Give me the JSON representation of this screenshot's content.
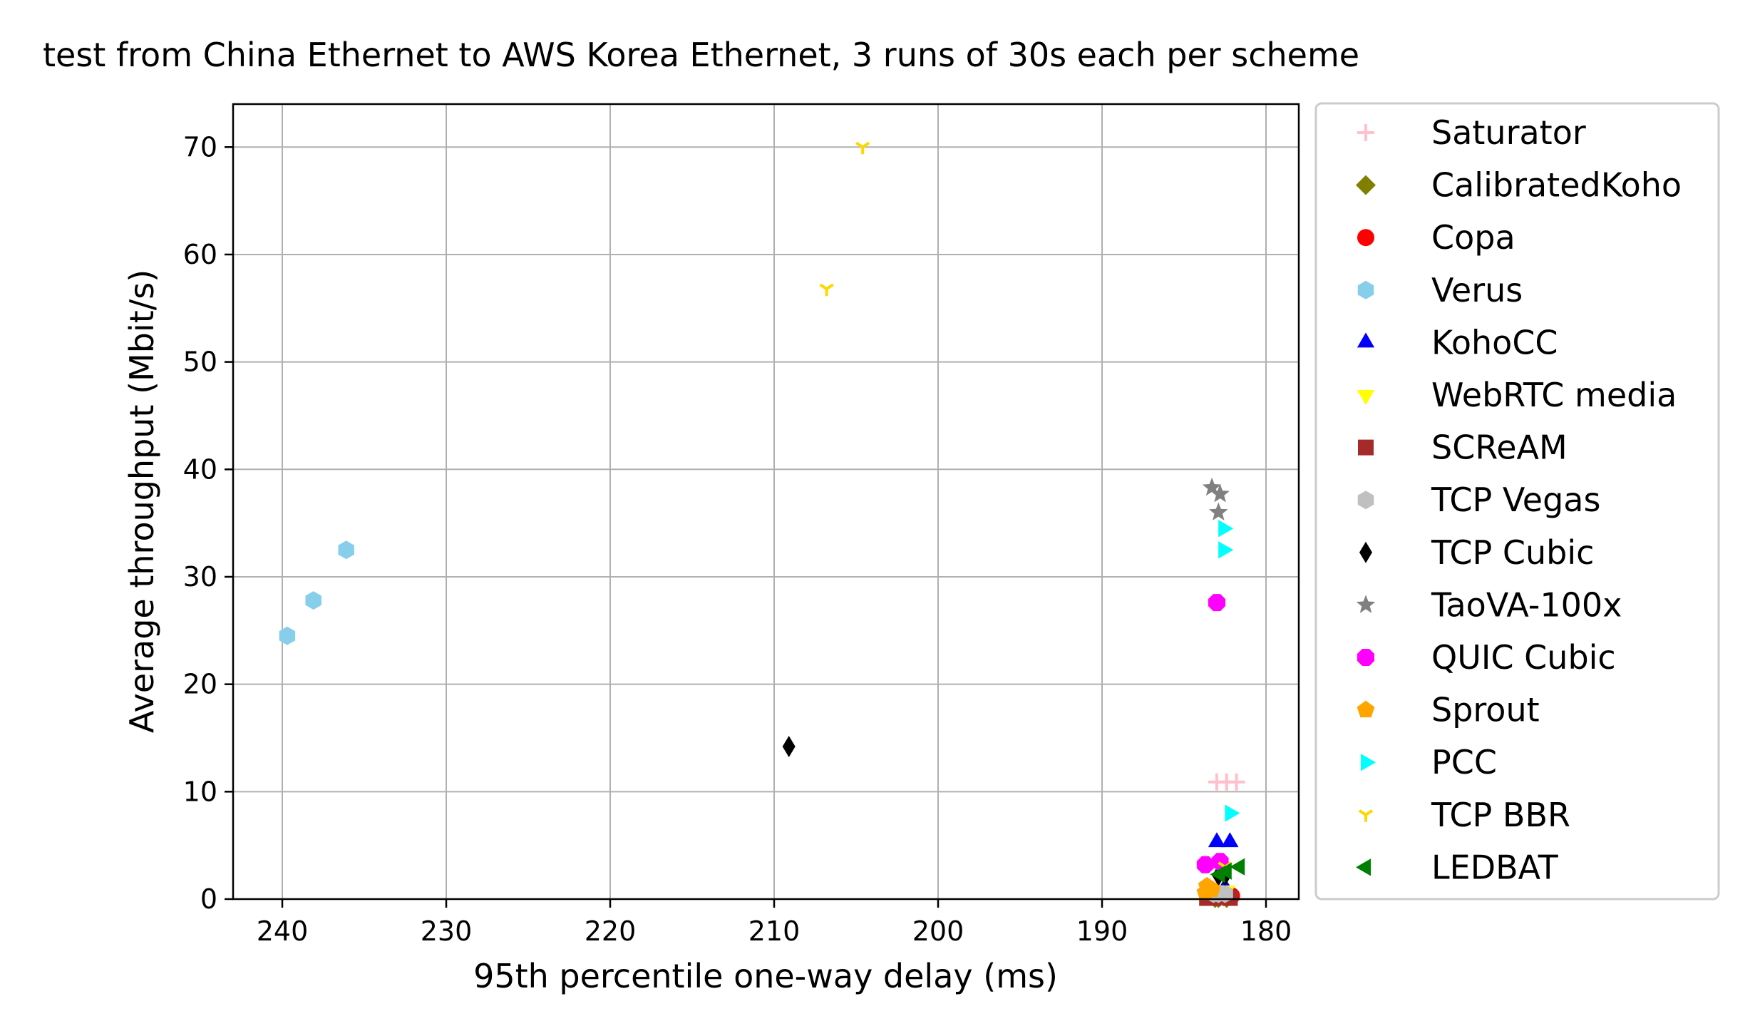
{
  "chart_data": {
    "type": "scatter",
    "title": "test from China Ethernet to AWS Korea Ethernet, 3 runs of 30s each per scheme",
    "xlabel": "95th percentile one-way delay (ms)",
    "ylabel": "Average throughput (Mbit/s)",
    "xlim": [
      243,
      178
    ],
    "ylim": [
      0,
      74
    ],
    "x_inverted": true,
    "x_ticks": [
      240,
      230,
      220,
      210,
      200,
      190,
      180
    ],
    "y_ticks": [
      0,
      10,
      20,
      30,
      40,
      50,
      60,
      70
    ],
    "grid": true,
    "legend_position": "outside-right",
    "series": [
      {
        "name": "Saturator",
        "marker": "plus",
        "color": "#ffc0cb",
        "points": [
          [
            183.0,
            10.9
          ],
          [
            182.4,
            10.9
          ],
          [
            181.8,
            10.9
          ]
        ]
      },
      {
        "name": "CalibratedKoho",
        "marker": "diamond",
        "color": "#808000",
        "points": [
          [
            183.1,
            0.1
          ],
          [
            182.9,
            0.1
          ],
          [
            182.4,
            0.1
          ]
        ]
      },
      {
        "name": "Copa",
        "marker": "circle",
        "color": "#ff0000",
        "points": [
          [
            183.3,
            0.3
          ],
          [
            182.7,
            0.3
          ],
          [
            182.1,
            0.3
          ]
        ]
      },
      {
        "name": "Verus",
        "marker": "hexagon",
        "color": "#87ceeb",
        "points": [
          [
            239.7,
            24.5
          ],
          [
            238.1,
            27.8
          ],
          [
            236.1,
            32.5
          ]
        ]
      },
      {
        "name": "KohoCC",
        "marker": "triangle-up",
        "color": "#0000ff",
        "points": [
          [
            183.0,
            5.3
          ],
          [
            182.2,
            5.3
          ],
          [
            182.5,
            1.1
          ]
        ]
      },
      {
        "name": "WebRTC media",
        "marker": "triangle-down",
        "color": "#ffff00",
        "points": [
          [
            182.9,
            0.8
          ],
          [
            182.4,
            0.8
          ],
          [
            183.2,
            0.8
          ]
        ]
      },
      {
        "name": "SCReAM",
        "marker": "square",
        "color": "#a52a2a",
        "points": [
          [
            183.6,
            0.1
          ],
          [
            183.2,
            0.1
          ],
          [
            182.2,
            0.1
          ]
        ]
      },
      {
        "name": "TCP Vegas",
        "marker": "hexagon",
        "color": "#c0c0c0",
        "points": [
          [
            182.5,
            0.5
          ],
          [
            182.9,
            0.5
          ],
          [
            183.2,
            0.5
          ]
        ]
      },
      {
        "name": "TCP Cubic",
        "marker": "thin-diamond",
        "color": "#000000",
        "points": [
          [
            209.1,
            14.2
          ],
          [
            182.5,
            2.2
          ],
          [
            182.9,
            2.2
          ]
        ]
      },
      {
        "name": "TaoVA-100x",
        "marker": "star",
        "color": "#808080",
        "points": [
          [
            183.3,
            38.3
          ],
          [
            182.8,
            37.7
          ],
          [
            182.9,
            36.0
          ]
        ]
      },
      {
        "name": "QUIC Cubic",
        "marker": "octagon",
        "color": "#ff00ff",
        "points": [
          [
            183.0,
            27.6
          ],
          [
            183.7,
            3.2
          ],
          [
            182.8,
            3.5
          ]
        ]
      },
      {
        "name": "Sprout",
        "marker": "pentagon",
        "color": "#ffa500",
        "points": [
          [
            183.6,
            1.2
          ],
          [
            183.3,
            0.9
          ],
          [
            183.7,
            0.6
          ]
        ]
      },
      {
        "name": "PCC",
        "marker": "triangle-right",
        "color": "#00ffff",
        "points": [
          [
            182.6,
            34.5
          ],
          [
            182.6,
            32.5
          ],
          [
            182.2,
            8.0
          ]
        ]
      },
      {
        "name": "TCP BBR",
        "marker": "tri-down",
        "color": "#ffd700",
        "points": [
          [
            204.6,
            70.0
          ],
          [
            206.8,
            56.8
          ],
          [
            182.5,
            3.0
          ]
        ]
      },
      {
        "name": "LEDBAT",
        "marker": "triangle-left",
        "color": "#008000",
        "points": [
          [
            181.6,
            3.0
          ],
          [
            182.8,
            2.3
          ],
          [
            182.4,
            2.6
          ]
        ]
      }
    ]
  }
}
